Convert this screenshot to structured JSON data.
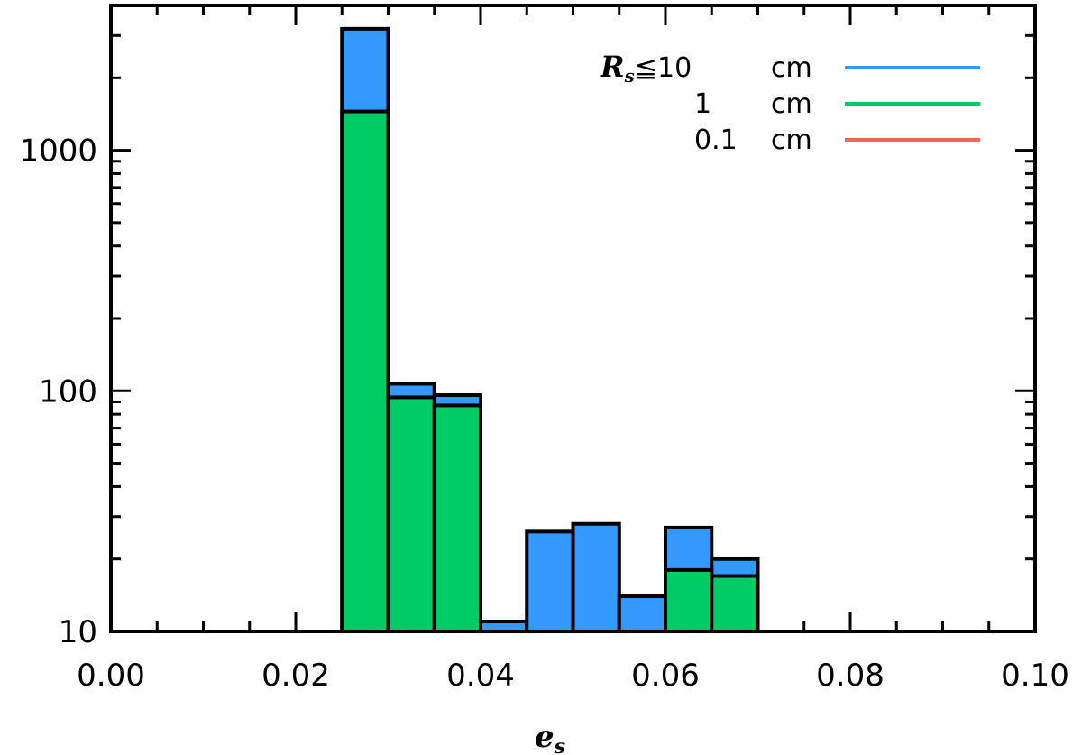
{
  "chart_data": {
    "type": "bar",
    "xlabel": {
      "symbol": "e",
      "subscript": "s"
    },
    "ylabel": "",
    "xlim": [
      0.0,
      0.1
    ],
    "ylim": [
      10,
      4000
    ],
    "yscale": "log",
    "x_ticks": [
      "0.00",
      "0.02",
      "0.04",
      "0.06",
      "0.08",
      "0.10"
    ],
    "y_ticks": [
      "10",
      "100",
      "1000"
    ],
    "bin_width": 0.005,
    "series": [
      {
        "name": "10 cm",
        "color": "#3399ff",
        "bins": [
          {
            "x0": 0.025,
            "x1": 0.03,
            "value": 3200
          },
          {
            "x0": 0.03,
            "x1": 0.035,
            "value": 107
          },
          {
            "x0": 0.035,
            "x1": 0.04,
            "value": 96
          },
          {
            "x0": 0.04,
            "x1": 0.045,
            "value": 11
          },
          {
            "x0": 0.045,
            "x1": 0.05,
            "value": 26
          },
          {
            "x0": 0.05,
            "x1": 0.055,
            "value": 28
          },
          {
            "x0": 0.055,
            "x1": 0.06,
            "value": 14
          },
          {
            "x0": 0.06,
            "x1": 0.065,
            "value": 27
          },
          {
            "x0": 0.065,
            "x1": 0.07,
            "value": 20
          }
        ]
      },
      {
        "name": "1 cm",
        "color": "#00cc66",
        "bins": [
          {
            "x0": 0.025,
            "x1": 0.03,
            "value": 1450
          },
          {
            "x0": 0.03,
            "x1": 0.035,
            "value": 94
          },
          {
            "x0": 0.035,
            "x1": 0.04,
            "value": 87
          },
          {
            "x0": 0.06,
            "x1": 0.065,
            "value": 18
          },
          {
            "x0": 0.065,
            "x1": 0.07,
            "value": 17
          }
        ]
      },
      {
        "name": "0.1 cm",
        "color": "#ee6655",
        "bins": []
      }
    ],
    "legend": {
      "placement": "top-right",
      "prefix": {
        "symbol": "R",
        "subscript": "s",
        "operator": "≦"
      },
      "entries": [
        {
          "value": "10",
          "unit": "cm",
          "color": "#3399ff"
        },
        {
          "value": "1",
          "unit": "cm",
          "color": "#00cc66"
        },
        {
          "value": "0.1",
          "unit": "cm",
          "color": "#ee6655"
        }
      ]
    }
  }
}
